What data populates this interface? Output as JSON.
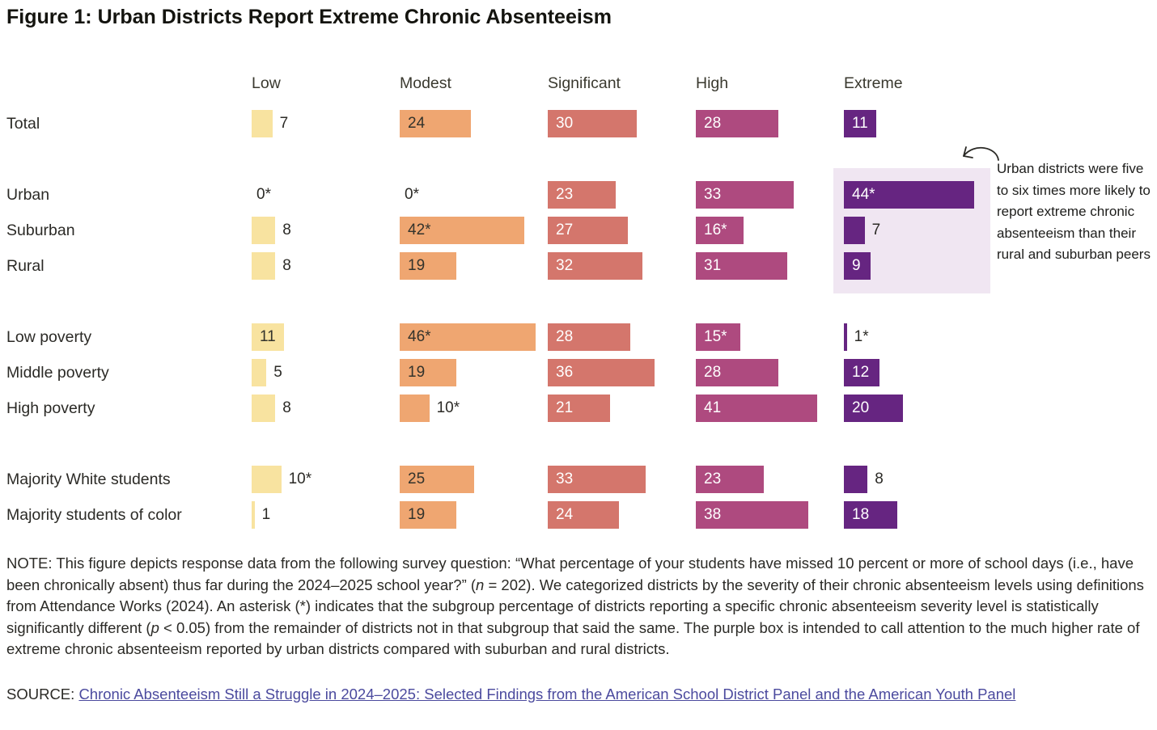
{
  "title": {
    "prefix": "Figure 1:",
    "main": "Urban Districts Report Extreme Chronic Absenteeism"
  },
  "annotation": {
    "text": "Urban districts were five to six times more likely to report extreme chronic absenteeism than their rural and suburban peers"
  },
  "chart_data": {
    "type": "bar",
    "orientation": "horizontal",
    "units": "percent of districts",
    "categories": [
      "Low",
      "Modest",
      "Significant",
      "High",
      "Extreme"
    ],
    "colors": [
      "#f8e3a0",
      "#efa671",
      "#d4766c",
      "#ae4a7f",
      "#662581"
    ],
    "inside_label_colors": [
      "#33332c",
      "#33332c",
      "#ffffff",
      "#ffffff",
      "#ffffff"
    ],
    "highlight_box_color": "#f0e6f2",
    "xmax": 50,
    "groups": [
      {
        "rows": [
          {
            "label": "Total",
            "values": [
              7,
              24,
              30,
              28,
              11
            ],
            "labels": [
              "7",
              "24",
              "30",
              "28",
              "11"
            ]
          }
        ]
      },
      {
        "rows": [
          {
            "label": "Urban",
            "values": [
              0,
              0,
              23,
              33,
              44
            ],
            "labels": [
              "0*",
              "0*",
              "23",
              "33",
              "44*"
            ]
          },
          {
            "label": "Suburban",
            "values": [
              8,
              42,
              27,
              16,
              7
            ],
            "labels": [
              "8",
              "42*",
              "27",
              "16*",
              "7"
            ]
          },
          {
            "label": "Rural",
            "values": [
              8,
              19,
              32,
              31,
              9
            ],
            "labels": [
              "8",
              "19",
              "32",
              "31",
              "9"
            ]
          }
        ]
      },
      {
        "rows": [
          {
            "label": "Low poverty",
            "values": [
              11,
              46,
              28,
              15,
              1
            ],
            "labels": [
              "11",
              "46*",
              "28",
              "15*",
              "1*"
            ]
          },
          {
            "label": "Middle poverty",
            "values": [
              5,
              19,
              36,
              28,
              12
            ],
            "labels": [
              "5",
              "19",
              "36",
              "28",
              "12"
            ]
          },
          {
            "label": "High poverty",
            "values": [
              8,
              10,
              21,
              41,
              20
            ],
            "labels": [
              "8",
              "10*",
              "21",
              "41",
              "20"
            ]
          }
        ]
      },
      {
        "rows": [
          {
            "label": "Majority White students",
            "values": [
              10,
              25,
              33,
              23,
              8
            ],
            "labels": [
              "10*",
              "25",
              "33",
              "23",
              "8"
            ]
          },
          {
            "label": "Majority students of color",
            "values": [
              1,
              19,
              24,
              38,
              18
            ],
            "labels": [
              "1",
              "19",
              "24",
              "38",
              "18"
            ]
          }
        ]
      }
    ]
  },
  "note": {
    "segments": [
      {
        "text": "NOTE: This figure depicts response data from the following survey question: “What percentage of your students have missed 10 percent or more of school days (i.e., have been chronically absent) thus far during the 2024–2025 school year?” (",
        "italic": false
      },
      {
        "text": "n",
        "italic": true
      },
      {
        "text": " = 202). We categorized districts by the severity of their chronic absenteeism levels using definitions from Attendance Works (2024). An asterisk (*) indicates that the subgroup percentage of districts reporting a specific chronic absenteeism severity level is statistically significantly different (",
        "italic": false
      },
      {
        "text": "p",
        "italic": true
      },
      {
        "text": " < 0.05) from the remainder of districts not in that subgroup that said the same. The purple box is intended to call attention to the much higher rate of extreme chronic absenteeism reported by urban districts compared with suburban and rural districts.",
        "italic": false
      }
    ]
  },
  "source": {
    "prefix": "SOURCE: ",
    "link_text": "Chronic Absenteeism Still a Struggle in 2024–2025: Selected Findings from the American School District Panel and the American Youth Panel",
    "link_color": "#4b4a9e"
  }
}
